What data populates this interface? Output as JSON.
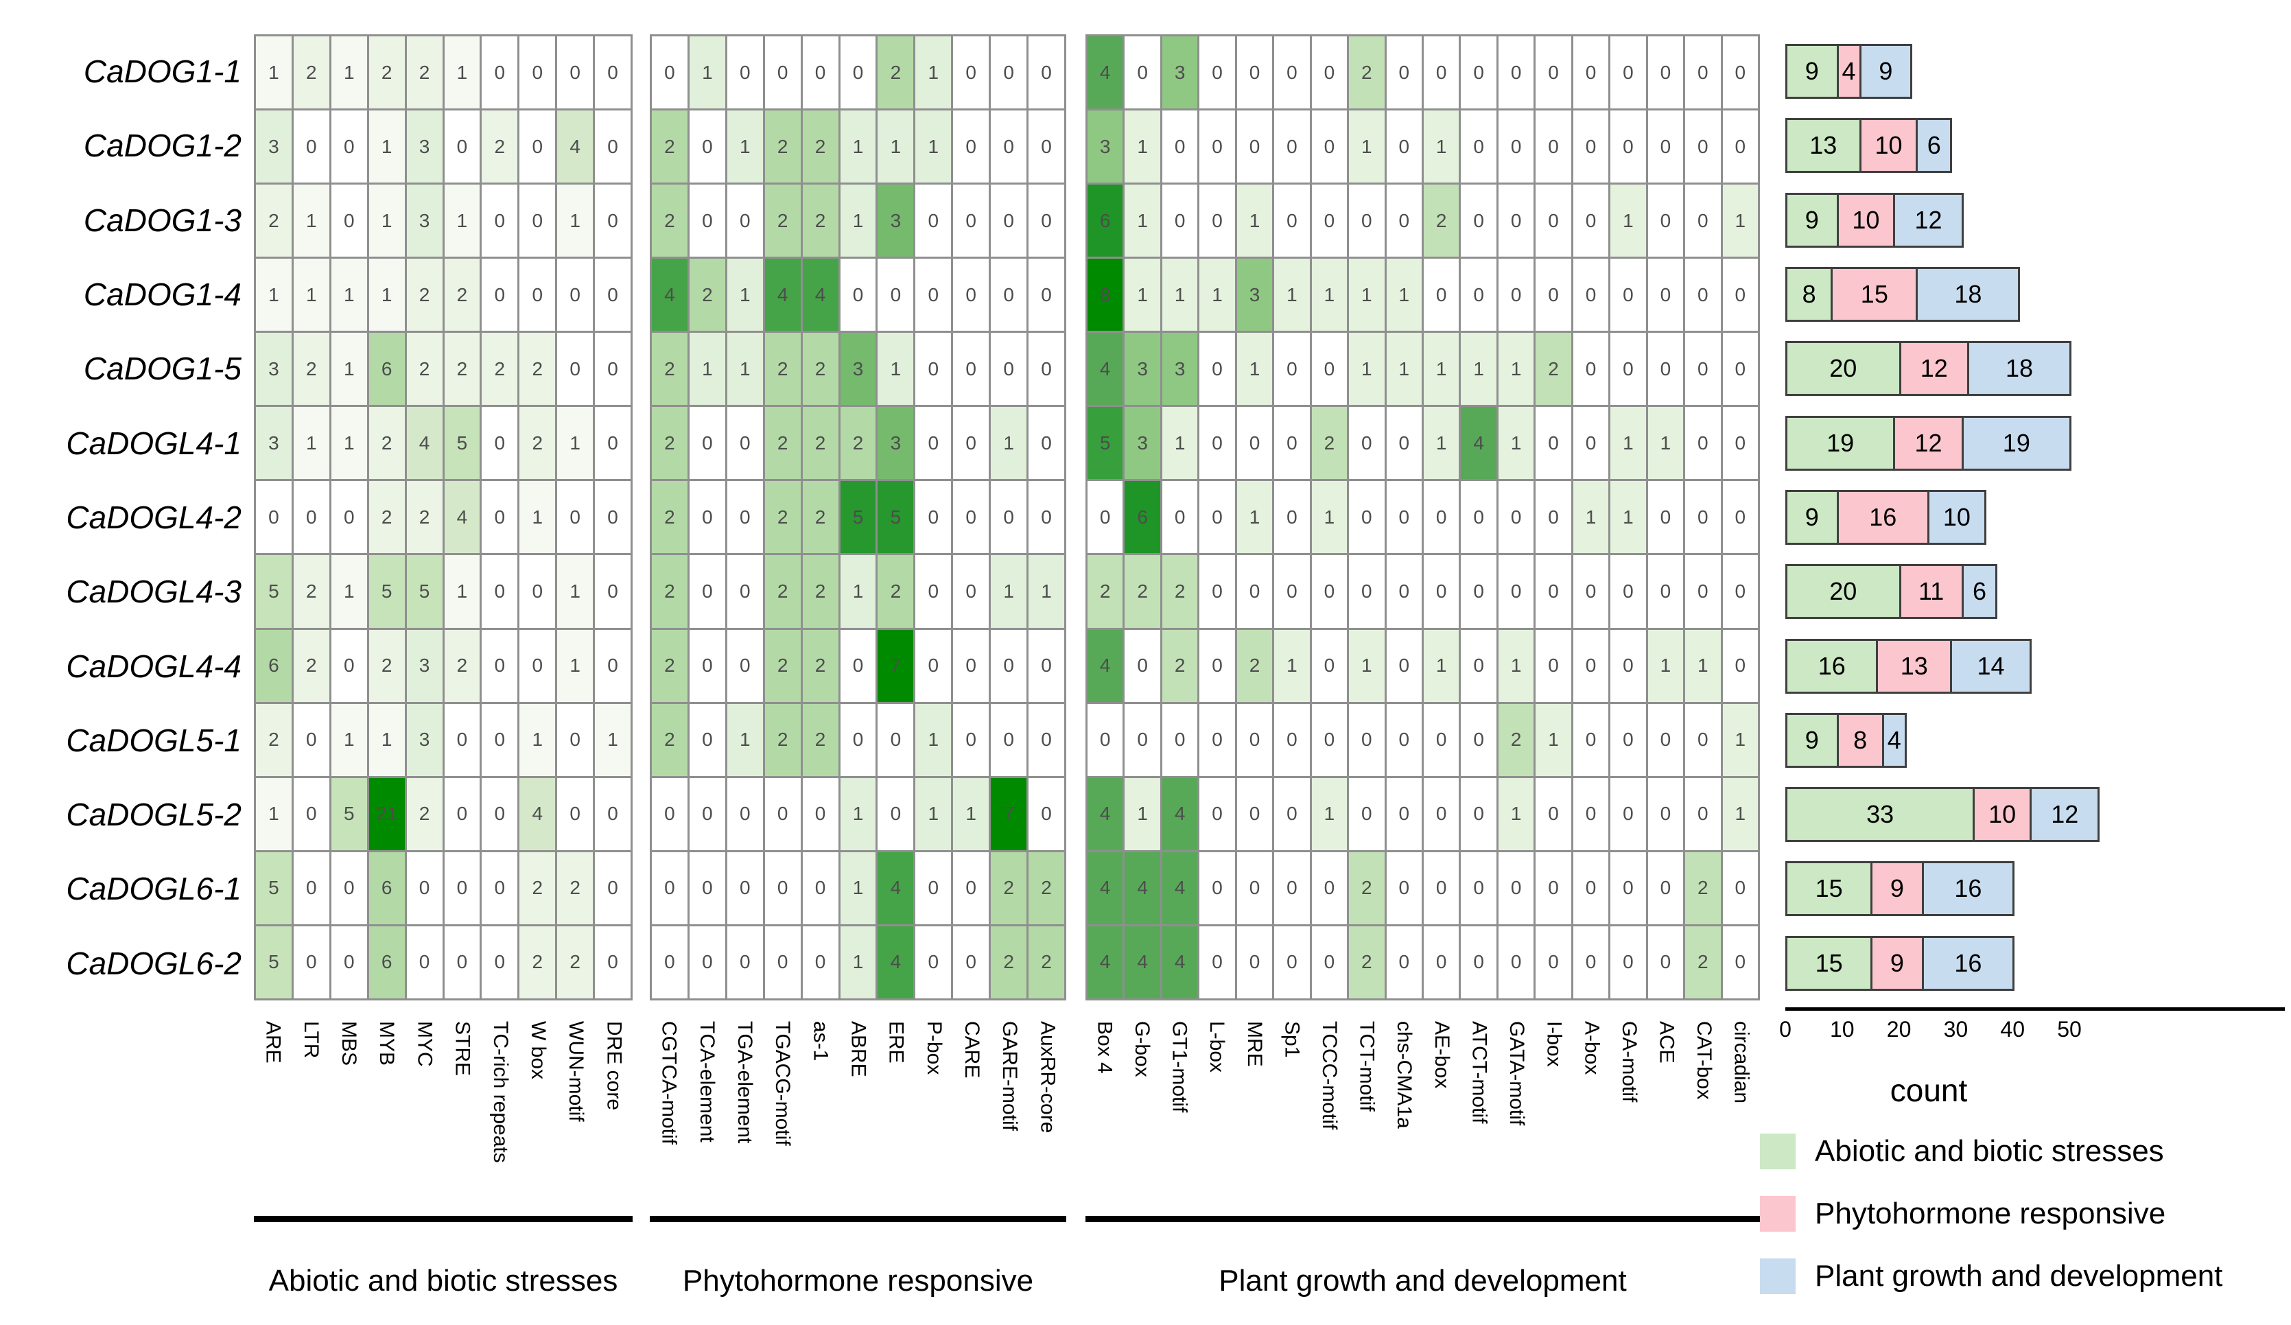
{
  "chart_data": {
    "type": "heatmap",
    "title": "",
    "rows": [
      "CaDOG1-1",
      "CaDOG1-2",
      "CaDOG1-3",
      "CaDOG1-4",
      "CaDOG1-5",
      "CaDOGL4-1",
      "CaDOGL4-2",
      "CaDOGL4-3",
      "CaDOGL4-4",
      "CaDOGL5-1",
      "CaDOGL5-2",
      "CaDOGL6-1",
      "CaDOGL6-2"
    ],
    "heat_ramp": [
      [
        0,
        "#ffffff"
      ],
      [
        0.05,
        "#f4f9f1"
      ],
      [
        0.1,
        "#eaf4e4"
      ],
      [
        0.15,
        "#e0efd8"
      ],
      [
        0.2,
        "#d2e8c7"
      ],
      [
        0.25,
        "#c3e1b6"
      ],
      [
        0.3,
        "#add79f"
      ],
      [
        0.375,
        "#8fc883"
      ],
      [
        0.45,
        "#6cb465"
      ],
      [
        0.5,
        "#57a957"
      ],
      [
        0.625,
        "#37a03c"
      ],
      [
        0.75,
        "#1f9527"
      ],
      [
        0.875,
        "#0d8a12"
      ],
      [
        1,
        "#008a00"
      ]
    ],
    "groups": [
      {
        "name": "Abiotic and biotic stresses",
        "scale_max": 21,
        "motifs": [
          "ARE",
          "LTR",
          "MBS",
          "MYB",
          "MYC",
          "STRE",
          "TC-rich repeats",
          "W box",
          "WUN-motif",
          "DRE core"
        ],
        "values": [
          [
            1,
            2,
            1,
            2,
            2,
            1,
            0,
            0,
            0,
            0
          ],
          [
            3,
            0,
            0,
            1,
            3,
            0,
            2,
            0,
            4,
            0
          ],
          [
            2,
            1,
            0,
            1,
            3,
            1,
            0,
            0,
            1,
            0
          ],
          [
            1,
            1,
            1,
            1,
            2,
            2,
            0,
            0,
            0,
            0
          ],
          [
            3,
            2,
            1,
            6,
            2,
            2,
            2,
            2,
            0,
            0
          ],
          [
            3,
            1,
            1,
            2,
            4,
            5,
            0,
            2,
            1,
            0
          ],
          [
            0,
            0,
            0,
            2,
            2,
            4,
            0,
            1,
            0,
            0
          ],
          [
            5,
            2,
            1,
            5,
            5,
            1,
            0,
            0,
            1,
            0
          ],
          [
            6,
            2,
            0,
            2,
            3,
            2,
            0,
            0,
            1,
            0
          ],
          [
            2,
            0,
            1,
            1,
            3,
            0,
            0,
            1,
            0,
            1
          ],
          [
            1,
            0,
            5,
            21,
            2,
            0,
            0,
            4,
            0,
            0
          ],
          [
            5,
            0,
            0,
            6,
            0,
            0,
            0,
            2,
            2,
            0
          ],
          [
            5,
            0,
            0,
            6,
            0,
            0,
            0,
            2,
            2,
            0
          ]
        ]
      },
      {
        "name": "Phytohormone responsive",
        "scale_max": 7,
        "motifs": [
          "CGTCA-motif",
          "TCA-element",
          "TGA-element",
          "TGACG-motif",
          "as-1",
          "ABRE",
          "ERE",
          "P-box",
          "CARE",
          "GARE-motif",
          "AuxRR-core"
        ],
        "values": [
          [
            0,
            1,
            0,
            0,
            0,
            0,
            2,
            1,
            0,
            0,
            0
          ],
          [
            2,
            0,
            1,
            2,
            2,
            1,
            1,
            1,
            0,
            0,
            0
          ],
          [
            2,
            0,
            0,
            2,
            2,
            1,
            3,
            0,
            0,
            0,
            0
          ],
          [
            4,
            2,
            1,
            4,
            4,
            0,
            0,
            0,
            0,
            0,
            0
          ],
          [
            2,
            1,
            1,
            2,
            2,
            3,
            1,
            0,
            0,
            0,
            0
          ],
          [
            2,
            0,
            0,
            2,
            2,
            2,
            3,
            0,
            0,
            1,
            0
          ],
          [
            2,
            0,
            0,
            2,
            2,
            5,
            5,
            0,
            0,
            0,
            0
          ],
          [
            2,
            0,
            0,
            2,
            2,
            1,
            2,
            0,
            0,
            1,
            1
          ],
          [
            2,
            0,
            0,
            2,
            2,
            0,
            7,
            0,
            0,
            0,
            0
          ],
          [
            2,
            0,
            1,
            2,
            2,
            0,
            0,
            1,
            0,
            0,
            0
          ],
          [
            0,
            0,
            0,
            0,
            0,
            1,
            0,
            1,
            1,
            7,
            0
          ],
          [
            0,
            0,
            0,
            0,
            0,
            1,
            4,
            0,
            0,
            2,
            2
          ],
          [
            0,
            0,
            0,
            0,
            0,
            1,
            4,
            0,
            0,
            2,
            2
          ]
        ]
      },
      {
        "name": "Plant growth and development",
        "scale_max": 8,
        "motifs": [
          "Box 4",
          "G-box",
          "GT1-motif",
          "L-box",
          "MRE",
          "Sp1",
          "TCCC-motif",
          "TCT-motif",
          "chs-CMA1a",
          "AE-box",
          "ATCT-motif",
          "GATA-motif",
          "I-box",
          "A-box",
          "GA-motif",
          "ACE",
          "CAT-box",
          "circadian"
        ],
        "values": [
          [
            4,
            0,
            3,
            0,
            0,
            0,
            0,
            2,
            0,
            0,
            0,
            0,
            0,
            0,
            0,
            0,
            0,
            0
          ],
          [
            3,
            1,
            0,
            0,
            0,
            0,
            0,
            1,
            0,
            1,
            0,
            0,
            0,
            0,
            0,
            0,
            0,
            0
          ],
          [
            6,
            1,
            0,
            0,
            1,
            0,
            0,
            0,
            0,
            2,
            0,
            0,
            0,
            0,
            1,
            0,
            0,
            1
          ],
          [
            8,
            1,
            1,
            1,
            3,
            1,
            1,
            1,
            1,
            0,
            0,
            0,
            0,
            0,
            0,
            0,
            0,
            0
          ],
          [
            4,
            3,
            3,
            0,
            1,
            0,
            0,
            1,
            1,
            1,
            1,
            1,
            2,
            0,
            0,
            0,
            0,
            0
          ],
          [
            5,
            3,
            1,
            0,
            0,
            0,
            2,
            0,
            0,
            1,
            4,
            1,
            0,
            0,
            1,
            1,
            0,
            0
          ],
          [
            0,
            6,
            0,
            0,
            1,
            0,
            1,
            0,
            0,
            0,
            0,
            0,
            0,
            1,
            1,
            0,
            0,
            0
          ],
          [
            2,
            2,
            2,
            0,
            0,
            0,
            0,
            0,
            0,
            0,
            0,
            0,
            0,
            0,
            0,
            0,
            0,
            0
          ],
          [
            4,
            0,
            2,
            0,
            2,
            1,
            0,
            1,
            0,
            1,
            0,
            1,
            0,
            0,
            0,
            1,
            1,
            0
          ],
          [
            0,
            0,
            0,
            0,
            0,
            0,
            0,
            0,
            0,
            0,
            0,
            2,
            1,
            0,
            0,
            0,
            0,
            1
          ],
          [
            4,
            1,
            4,
            0,
            0,
            0,
            1,
            0,
            0,
            0,
            0,
            1,
            0,
            0,
            0,
            0,
            0,
            1
          ],
          [
            4,
            4,
            4,
            0,
            0,
            0,
            0,
            2,
            0,
            0,
            0,
            0,
            0,
            0,
            0,
            0,
            2,
            0
          ],
          [
            4,
            4,
            4,
            0,
            0,
            0,
            0,
            2,
            0,
            0,
            0,
            0,
            0,
            0,
            0,
            0,
            2,
            0
          ]
        ]
      }
    ],
    "bar_chart": {
      "type": "stacked-bar-horizontal",
      "xlabel": "count",
      "ticks": [
        0,
        10,
        20,
        30,
        40,
        50
      ],
      "xlim": [
        0,
        55
      ],
      "series": [
        {
          "name": "Abiotic and biotic stresses",
          "color": "#cde8c4",
          "values": [
            9,
            13,
            9,
            8,
            20,
            19,
            9,
            20,
            16,
            9,
            33,
            15,
            15
          ]
        },
        {
          "name": "Phytohormone responsive",
          "color": "#fbc6cd",
          "values": [
            4,
            10,
            10,
            15,
            12,
            12,
            16,
            11,
            13,
            8,
            10,
            9,
            9
          ]
        },
        {
          "name": "Plant growth and development",
          "color": "#c8dcf0",
          "values": [
            9,
            6,
            12,
            18,
            18,
            19,
            10,
            6,
            14,
            4,
            12,
            16,
            16
          ]
        }
      ]
    },
    "legend": [
      {
        "label": "Abiotic and biotic stresses",
        "color": "#cde8c4"
      },
      {
        "label": "Phytohormone responsive",
        "color": "#fbc6cd"
      },
      {
        "label": "Plant growth and development",
        "color": "#c8dcf0"
      }
    ],
    "colors": {
      "heat_low": "#ffffff",
      "heat_high": "#008a00",
      "cell_border": "#8f8f8f",
      "bar_border": "#3f3f3f",
      "text": "#000000",
      "cell_text": "#4d4d4d"
    }
  }
}
